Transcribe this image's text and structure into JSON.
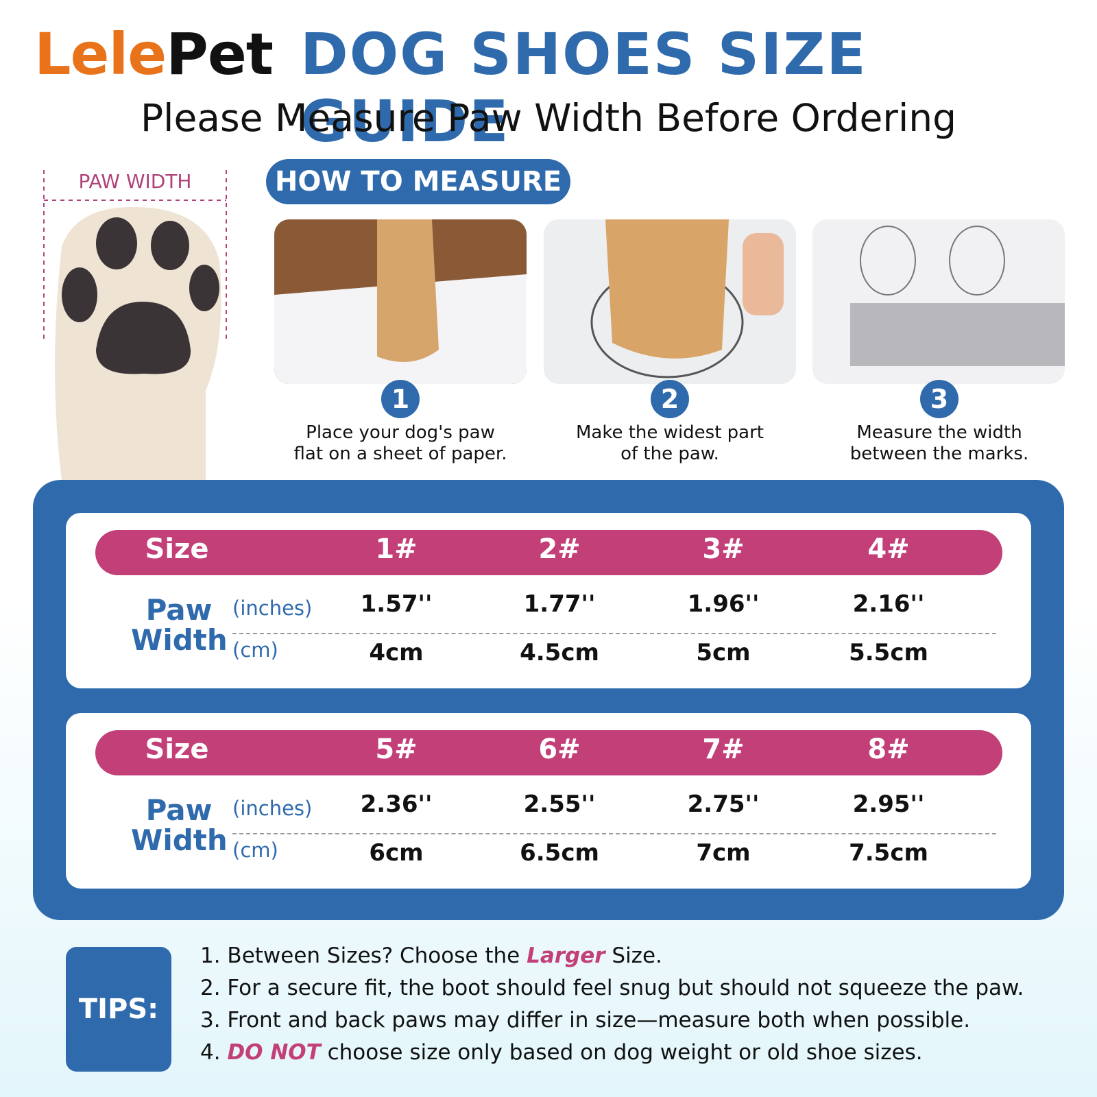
{
  "header": {
    "brand": "LelePet",
    "title": "DOG SHOES SIZE GUIDE",
    "subtitle": "Please Measure Paw Width Before Ordering"
  },
  "paw_label": "PAW WIDTH",
  "how_to": {
    "title": "HOW TO MEASURE",
    "steps": [
      {
        "number": "1",
        "lines": [
          "Place your dog's paw",
          "flat on a sheet of paper."
        ]
      },
      {
        "number": "2",
        "lines": [
          "Make the widest part",
          "of the paw."
        ]
      },
      {
        "number": "3",
        "lines": [
          "Measure the width",
          "between the marks."
        ]
      }
    ]
  },
  "tables": [
    {
      "size_label": "Size",
      "sizes": [
        "1#",
        "2#",
        "3#",
        "4#"
      ],
      "row_label": "Paw Width",
      "units": [
        "(inches)",
        "(cm)"
      ],
      "inches": [
        "1.57''",
        "1.77''",
        "1.96''",
        "2.16''"
      ],
      "cm": [
        "4cm",
        "4.5cm",
        "5cm",
        "5.5cm"
      ]
    },
    {
      "size_label": "Size",
      "sizes": [
        "5#",
        "6#",
        "7#",
        "8#"
      ],
      "row_label": "Paw Width",
      "units": [
        "(inches)",
        "(cm)"
      ],
      "inches": [
        "2.36''",
        "2.55''",
        "2.75''",
        "2.95''"
      ],
      "cm": [
        "6cm",
        "6.5cm",
        "7cm",
        "7.5cm"
      ]
    }
  ],
  "tips": {
    "title": "TIPS:",
    "items": [
      [
        "1. Between Sizes? Choose the ",
        "Larger",
        " Size."
      ],
      [
        "2. For a secure fit, the boot should feel snug but should not squeeze the paw."
      ],
      [
        "3. Front and back paws may differ in size—measure both when possible."
      ],
      [
        "4. ",
        "DO NOT",
        " choose size only based on dog weight or old shoe sizes."
      ]
    ]
  }
}
